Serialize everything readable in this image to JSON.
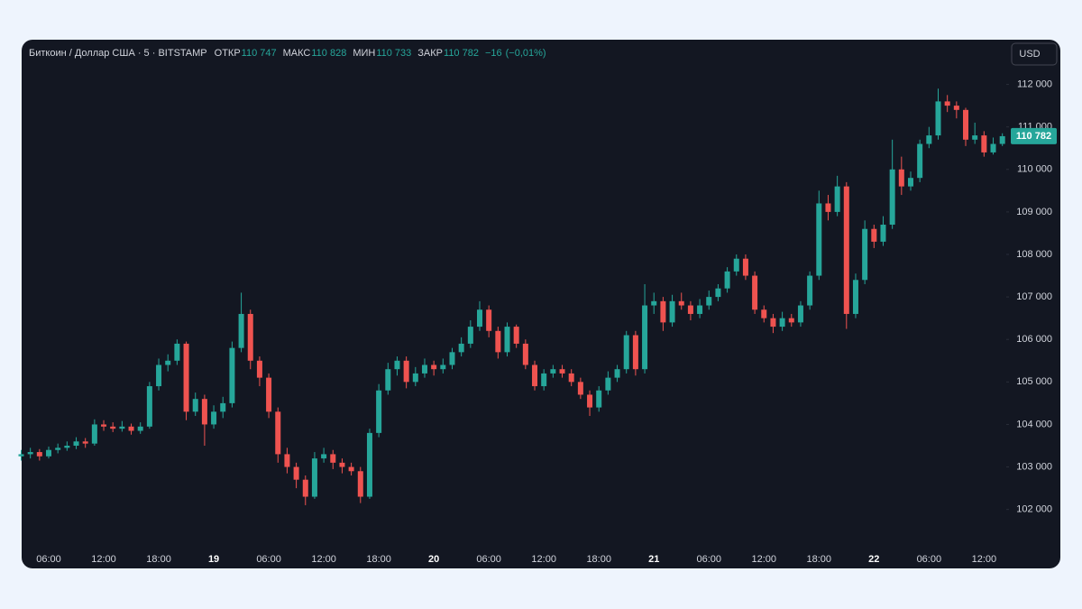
{
  "chart_data": {
    "type": "candlestick",
    "title": "Биткоин / Доллар США · 5 · BITSTAMP",
    "currency": "USD",
    "legend": [
      {
        "name": "ОТКР",
        "value": 110747,
        "label": "110 747"
      },
      {
        "name": "МАКС",
        "value": 110828,
        "label": "110 828"
      },
      {
        "name": "МИН",
        "value": 110733,
        "label": "110 733"
      },
      {
        "name": "ЗАКР",
        "value": 110782,
        "label": "110 782"
      }
    ],
    "change": {
      "value": -16,
      "label": "−16"
    },
    "change_pct": {
      "value": -0.01,
      "label": "(−0,01%)"
    },
    "colors": {
      "up": "#26a69a",
      "down": "#ef5350"
    },
    "ylim": [
      101250,
      112500
    ],
    "yticks": [
      {
        "value": 102000,
        "label": "102 000"
      },
      {
        "value": 103000,
        "label": "103 000"
      },
      {
        "value": 104000,
        "label": "104 000"
      },
      {
        "value": 105000,
        "label": "105 000"
      },
      {
        "value": 106000,
        "label": "106 000"
      },
      {
        "value": 107000,
        "label": "107 000"
      },
      {
        "value": 108000,
        "label": "108 000"
      },
      {
        "value": 109000,
        "label": "109 000"
      },
      {
        "value": 110000,
        "label": "110 000"
      },
      {
        "value": 111000,
        "label": "111 000"
      },
      {
        "value": 112000,
        "label": "112 000"
      }
    ],
    "day_labels": [
      "19",
      "20",
      "21",
      "22"
    ],
    "categories": [
      null,
      null,
      null,
      "06:00",
      null,
      null,
      null,
      null,
      null,
      "12:00",
      null,
      null,
      null,
      null,
      null,
      "18:00",
      null,
      null,
      null,
      null,
      null,
      "19",
      null,
      null,
      null,
      null,
      null,
      "06:00",
      null,
      null,
      null,
      null,
      null,
      "12:00",
      null,
      null,
      null,
      null,
      null,
      "18:00",
      null,
      null,
      null,
      null,
      null,
      "20",
      null,
      null,
      null,
      null,
      null,
      "06:00",
      null,
      null,
      null,
      null,
      null,
      "12:00",
      null,
      null,
      null,
      null,
      null,
      "18:00",
      null,
      null,
      null,
      null,
      null,
      "21",
      null,
      null,
      null,
      null,
      null,
      "06:00",
      null,
      null,
      null,
      null,
      null,
      "12:00",
      null,
      null,
      null,
      null,
      null,
      "18:00",
      null,
      null,
      null,
      null,
      null,
      "22",
      null,
      null,
      null,
      null,
      null,
      "06:00",
      null,
      null,
      null,
      null,
      null,
      "12:00",
      null,
      null
    ],
    "candles": [
      [
        103250,
        103400,
        103150,
        103300
      ],
      [
        103300,
        103450,
        103200,
        103350
      ],
      [
        103350,
        103420,
        103150,
        103250
      ],
      [
        103250,
        103480,
        103200,
        103400
      ],
      [
        103400,
        103550,
        103320,
        103450
      ],
      [
        103450,
        103600,
        103380,
        103500
      ],
      [
        103500,
        103700,
        103420,
        103600
      ],
      [
        103600,
        103680,
        103450,
        103550
      ],
      [
        103550,
        104120,
        103500,
        104000
      ],
      [
        104000,
        104100,
        103850,
        103950
      ],
      [
        103950,
        104050,
        103820,
        103900
      ],
      [
        103900,
        104080,
        103830,
        103950
      ],
      [
        103950,
        104020,
        103760,
        103850
      ],
      [
        103850,
        104050,
        103780,
        103950
      ],
      [
        103950,
        105000,
        103900,
        104900
      ],
      [
        104900,
        105550,
        104800,
        105400
      ],
      [
        105400,
        105650,
        105250,
        105500
      ],
      [
        105500,
        106000,
        105400,
        105900
      ],
      [
        105900,
        105950,
        104100,
        104300
      ],
      [
        104300,
        104750,
        104200,
        104600
      ],
      [
        104600,
        104700,
        103500,
        104000
      ],
      [
        104000,
        104450,
        103900,
        104300
      ],
      [
        104300,
        104650,
        104150,
        104500
      ],
      [
        104500,
        105950,
        104400,
        105800
      ],
      [
        105800,
        107100,
        105700,
        106600
      ],
      [
        106600,
        106700,
        105300,
        105500
      ],
      [
        105500,
        105600,
        104900,
        105100
      ],
      [
        105100,
        105200,
        104150,
        104300
      ],
      [
        104300,
        104400,
        103100,
        103300
      ],
      [
        103300,
        103450,
        102850,
        103000
      ],
      [
        103000,
        103100,
        102500,
        102700
      ],
      [
        102700,
        102800,
        102100,
        102300
      ],
      [
        102300,
        103350,
        102250,
        103200
      ],
      [
        103200,
        103450,
        103100,
        103300
      ],
      [
        103300,
        103400,
        102950,
        103100
      ],
      [
        103100,
        103200,
        102850,
        103000
      ],
      [
        103000,
        103100,
        102800,
        102900
      ],
      [
        102900,
        103000,
        102150,
        102300
      ],
      [
        102300,
        103900,
        102250,
        103800
      ],
      [
        103800,
        104950,
        103700,
        104800
      ],
      [
        104800,
        105450,
        104700,
        105300
      ],
      [
        105300,
        105600,
        105150,
        105500
      ],
      [
        105500,
        105600,
        104850,
        105000
      ],
      [
        105000,
        105350,
        104900,
        105200
      ],
      [
        105200,
        105550,
        105100,
        105400
      ],
      [
        105400,
        105500,
        105150,
        105300
      ],
      [
        105300,
        105550,
        105200,
        105400
      ],
      [
        105400,
        105800,
        105300,
        105700
      ],
      [
        105700,
        106050,
        105600,
        105900
      ],
      [
        105900,
        106450,
        105800,
        106300
      ],
      [
        106300,
        106900,
        106200,
        106700
      ],
      [
        106700,
        106800,
        106050,
        106200
      ],
      [
        106200,
        106300,
        105550,
        105700
      ],
      [
        105700,
        106400,
        105600,
        106300
      ],
      [
        106300,
        106350,
        105800,
        105900
      ],
      [
        105900,
        106000,
        105300,
        105400
      ],
      [
        105400,
        105500,
        104800,
        104900
      ],
      [
        104900,
        105300,
        104800,
        105200
      ],
      [
        105200,
        105400,
        105100,
        105300
      ],
      [
        105300,
        105400,
        105100,
        105200
      ],
      [
        105200,
        105300,
        104900,
        105000
      ],
      [
        105000,
        105100,
        104600,
        104700
      ],
      [
        104700,
        104800,
        104200,
        104400
      ],
      [
        104400,
        104900,
        104300,
        104800
      ],
      [
        104800,
        105250,
        104700,
        105100
      ],
      [
        105100,
        105400,
        105000,
        105300
      ],
      [
        105300,
        106200,
        105200,
        106100
      ],
      [
        106100,
        106200,
        105150,
        105300
      ],
      [
        105300,
        107300,
        105200,
        106800
      ],
      [
        106800,
        107100,
        106600,
        106900
      ],
      [
        106900,
        107000,
        106200,
        106400
      ],
      [
        106400,
        107050,
        106300,
        106900
      ],
      [
        106900,
        107100,
        106700,
        106800
      ],
      [
        106800,
        106900,
        106450,
        106600
      ],
      [
        106600,
        106950,
        106500,
        106800
      ],
      [
        106800,
        107150,
        106700,
        107000
      ],
      [
        107000,
        107300,
        106900,
        107200
      ],
      [
        107200,
        107700,
        107100,
        107600
      ],
      [
        107600,
        108000,
        107500,
        107900
      ],
      [
        107900,
        108000,
        107400,
        107500
      ],
      [
        107500,
        107600,
        106600,
        106700
      ],
      [
        106700,
        106800,
        106400,
        106500
      ],
      [
        106500,
        106600,
        106150,
        106300
      ],
      [
        106300,
        106650,
        106200,
        106500
      ],
      [
        106500,
        106600,
        106300,
        106400
      ],
      [
        106400,
        106900,
        106300,
        106800
      ],
      [
        106800,
        107600,
        106700,
        107500
      ],
      [
        107500,
        109500,
        107400,
        109200
      ],
      [
        109200,
        109400,
        108800,
        109000
      ],
      [
        109000,
        109850,
        108900,
        109600
      ],
      [
        109600,
        109700,
        106250,
        106600
      ],
      [
        106600,
        107550,
        106500,
        107400
      ],
      [
        107400,
        108800,
        107300,
        108600
      ],
      [
        108600,
        108700,
        108150,
        108300
      ],
      [
        108300,
        108900,
        108200,
        108700
      ],
      [
        108700,
        110700,
        108600,
        110000
      ],
      [
        110000,
        110300,
        109400,
        109600
      ],
      [
        109600,
        109950,
        109500,
        109800
      ],
      [
        109800,
        110700,
        109700,
        110600
      ],
      [
        110600,
        111000,
        110500,
        110800
      ],
      [
        110800,
        111900,
        110700,
        111600
      ],
      [
        111600,
        111750,
        111350,
        111500
      ],
      [
        111500,
        111600,
        111200,
        111400
      ],
      [
        111400,
        111450,
        110550,
        110700
      ],
      [
        110700,
        111100,
        110600,
        110800
      ],
      [
        110800,
        110900,
        110300,
        110400
      ],
      [
        110400,
        110750,
        110350,
        110600
      ],
      [
        110600,
        110850,
        110550,
        110782
      ]
    ]
  }
}
